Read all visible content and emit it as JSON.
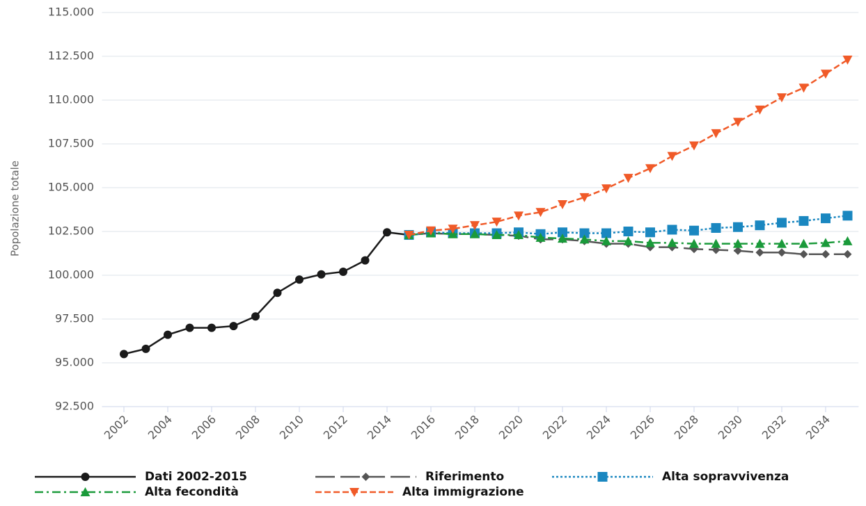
{
  "chart_data": {
    "type": "line",
    "y_label": "Popolazione totale",
    "x": [
      2002,
      2003,
      2004,
      2005,
      2006,
      2007,
      2008,
      2009,
      2010,
      2011,
      2012,
      2013,
      2014,
      2015,
      2016,
      2017,
      2018,
      2019,
      2020,
      2021,
      2022,
      2023,
      2024,
      2025,
      2026,
      2027,
      2028,
      2029,
      2030,
      2031,
      2032,
      2033,
      2034,
      2035
    ],
    "xlim": [
      2001,
      2035.5
    ],
    "xticks": [
      2002,
      2004,
      2006,
      2008,
      2010,
      2012,
      2014,
      2016,
      2018,
      2020,
      2022,
      2024,
      2026,
      2028,
      2030,
      2032,
      2034
    ],
    "ylim": [
      92500,
      115000
    ],
    "yticks": [
      {
        "value": 92500,
        "label": "92.500"
      },
      {
        "value": 95000,
        "label": "95.000"
      },
      {
        "value": 97500,
        "label": "97.500"
      },
      {
        "value": 100000,
        "label": "100.000"
      },
      {
        "value": 102500,
        "label": "102.500"
      },
      {
        "value": 105000,
        "label": "105.000"
      },
      {
        "value": 107500,
        "label": "107.500"
      },
      {
        "value": 110000,
        "label": "110.000"
      },
      {
        "value": 112500,
        "label": "112.500"
      },
      {
        "value": 115000,
        "label": "115.000"
      }
    ],
    "grid": true,
    "legend": "bottom",
    "series": [
      {
        "name": "Dati 2002-2015",
        "color": "#1a1a1a",
        "marker": "circle",
        "dash": "solid",
        "values": [
          95500,
          95800,
          96600,
          97000,
          97000,
          97100,
          97650,
          99000,
          99750,
          100050,
          100200,
          100850,
          102450,
          102300,
          null,
          null,
          null,
          null,
          null,
          null,
          null,
          null,
          null,
          null,
          null,
          null,
          null,
          null,
          null,
          null,
          null,
          null,
          null,
          null
        ]
      },
      {
        "name": "Riferimento",
        "color": "#555555",
        "marker": "diamond",
        "dash": "longdash",
        "values": [
          null,
          null,
          null,
          null,
          null,
          null,
          null,
          null,
          null,
          null,
          null,
          null,
          null,
          102300,
          102400,
          102350,
          102350,
          102300,
          102250,
          102050,
          102050,
          101950,
          101800,
          101800,
          101600,
          101600,
          101500,
          101450,
          101400,
          101300,
          101300,
          101200,
          101200,
          101200
        ]
      },
      {
        "name": "Alta sopravvivenza",
        "color": "#1a87c0",
        "marker": "square",
        "dash": "dot",
        "values": [
          null,
          null,
          null,
          null,
          null,
          null,
          null,
          null,
          null,
          null,
          null,
          null,
          null,
          102300,
          102450,
          102400,
          102400,
          102400,
          102450,
          102350,
          102450,
          102400,
          102400,
          102500,
          102450,
          102600,
          102550,
          102700,
          102750,
          102850,
          103000,
          103100,
          103250,
          103400
        ]
      },
      {
        "name": "Alta fecondità",
        "color": "#1a9a3a",
        "marker": "triangle",
        "dash": "dashdot",
        "values": [
          null,
          null,
          null,
          null,
          null,
          null,
          null,
          null,
          null,
          null,
          null,
          null,
          null,
          102300,
          102400,
          102350,
          102350,
          102300,
          102300,
          102150,
          102100,
          102050,
          101950,
          101950,
          101850,
          101850,
          101800,
          101800,
          101800,
          101800,
          101800,
          101800,
          101850,
          101950
        ]
      },
      {
        "name": "Alta immigrazione",
        "color": "#f05a28",
        "marker": "triangle-down",
        "dash": "dash",
        "values": [
          null,
          null,
          null,
          null,
          null,
          null,
          null,
          null,
          null,
          null,
          null,
          null,
          null,
          102300,
          102550,
          102650,
          102850,
          103050,
          103400,
          103600,
          104050,
          104450,
          104950,
          105550,
          106100,
          106800,
          107400,
          108100,
          108750,
          109450,
          110150,
          110700,
          111500,
          112300
        ]
      }
    ]
  }
}
